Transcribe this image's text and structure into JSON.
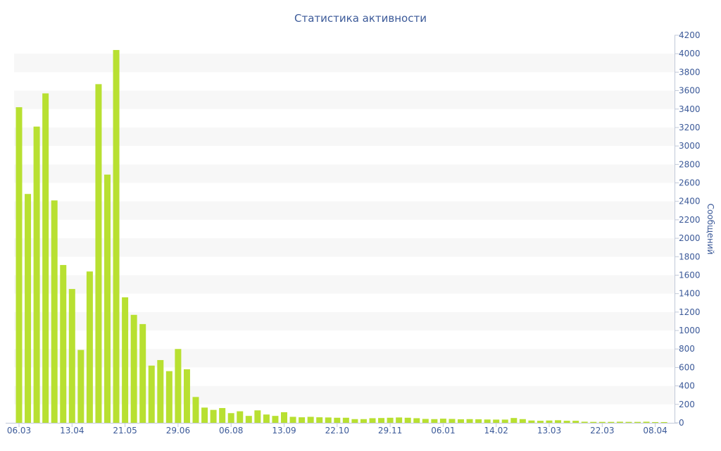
{
  "chart_data": {
    "type": "bar",
    "title": "Статистика активности",
    "ylabel": "Сообщений",
    "xlabel": "",
    "ylim": [
      0,
      4200
    ],
    "y_ticks": [
      0,
      200,
      400,
      600,
      800,
      1000,
      1200,
      1400,
      1600,
      1800,
      2000,
      2200,
      2400,
      2600,
      2800,
      3000,
      3200,
      3400,
      3600,
      3800,
      4000,
      4200
    ],
    "y_axis_side": "right",
    "grid": "alternating horizontal bands",
    "x_tick_labels": [
      "06.03",
      "13.04",
      "21.05",
      "29.06",
      "06.08",
      "13.09",
      "22.10",
      "29.11",
      "06.01",
      "14.02",
      "13.03",
      "22.03",
      "08.04"
    ],
    "x_tick_indices": [
      0,
      6,
      12,
      18,
      24,
      30,
      36,
      42,
      48,
      54,
      60,
      66,
      72
    ],
    "bar_color": "#b8e031",
    "band_color": "#f7f7f7",
    "text_color": "#3c5a99",
    "values": [
      3420,
      2480,
      3210,
      3570,
      2410,
      1710,
      1450,
      790,
      1640,
      3670,
      2690,
      4040,
      1360,
      1170,
      1070,
      620,
      680,
      560,
      800,
      580,
      280,
      165,
      140,
      160,
      105,
      125,
      75,
      135,
      90,
      75,
      115,
      65,
      60,
      65,
      60,
      58,
      55,
      55,
      40,
      40,
      50,
      52,
      55,
      58,
      55,
      50,
      42,
      40,
      45,
      42,
      38,
      40,
      38,
      36,
      35,
      35,
      52,
      40,
      25,
      22,
      25,
      28,
      22,
      22,
      12,
      10,
      10,
      10,
      12,
      10,
      10,
      12,
      8,
      8
    ]
  }
}
